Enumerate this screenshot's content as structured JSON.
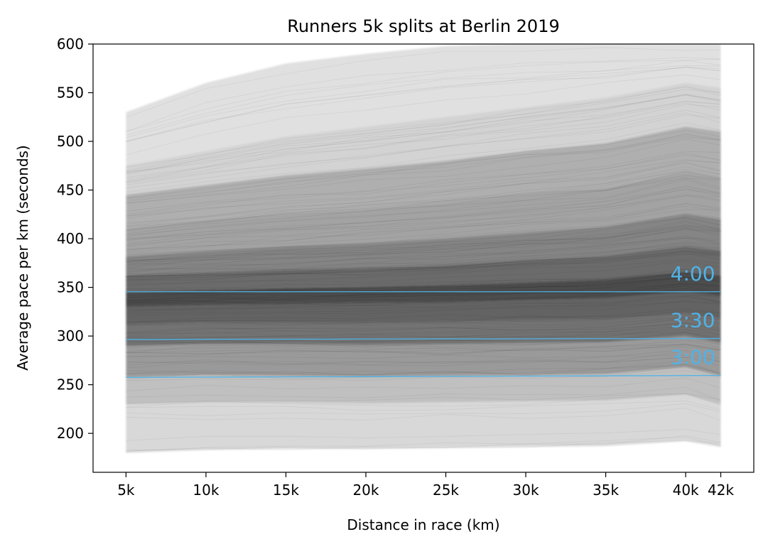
{
  "chart_data": {
    "type": "line",
    "title": "Runners 5k splits at Berlin 2019",
    "xlabel": "Distance in race (km)",
    "ylabel": "Average pace per km (seconds)",
    "x_categories": [
      "5k",
      "10k",
      "15k",
      "20k",
      "25k",
      "30k",
      "35k",
      "40k",
      "42k"
    ],
    "x_values": [
      5,
      10,
      15,
      20,
      25,
      30,
      35,
      40,
      42.195
    ],
    "ylim": [
      160,
      600
    ],
    "yticks": [
      200,
      250,
      300,
      350,
      400,
      450,
      500,
      550,
      600
    ],
    "grid": false,
    "runner_pace_distribution": {
      "percentile_levels": [
        0,
        5,
        10,
        20,
        30,
        40,
        50,
        60,
        70,
        80,
        90,
        95,
        100
      ],
      "pace_seconds_by_split": [
        [
          180,
          230,
          258,
          290,
          312,
          330,
          345,
          362,
          382,
          410,
          445,
          475,
          530
        ],
        [
          183,
          232,
          260,
          292,
          314,
          332,
          347,
          365,
          387,
          418,
          455,
          490,
          560
        ],
        [
          184,
          232,
          259,
          292,
          314,
          333,
          349,
          368,
          392,
          425,
          465,
          505,
          580
        ],
        [
          184,
          231,
          258,
          291,
          314,
          334,
          350,
          370,
          395,
          430,
          472,
          515,
          590
        ],
        [
          185,
          232,
          259,
          292,
          315,
          335,
          352,
          373,
          400,
          437,
          480,
          525,
          598
        ],
        [
          186,
          233,
          260,
          293,
          316,
          337,
          355,
          378,
          406,
          445,
          490,
          535,
          600
        ],
        [
          187,
          234,
          261,
          294,
          317,
          339,
          358,
          382,
          412,
          452,
          498,
          545,
          600
        ],
        [
          192,
          240,
          268,
          300,
          323,
          345,
          366,
          392,
          425,
          468,
          515,
          560,
          600
        ],
        [
          186,
          230,
          259,
          293,
          318,
          341,
          362,
          388,
          420,
          462,
          510,
          555,
          600
        ]
      ]
    },
    "reference_lines": [
      {
        "label": "4:00",
        "y_start": 345.5,
        "y_end": 345.5
      },
      {
        "label": "3:30",
        "y_start": 296.5,
        "y_end": 297.5
      },
      {
        "label": "3:00",
        "y_start": 257.5,
        "y_end": 259.5
      }
    ],
    "reference_color": "#4fb3e8"
  }
}
